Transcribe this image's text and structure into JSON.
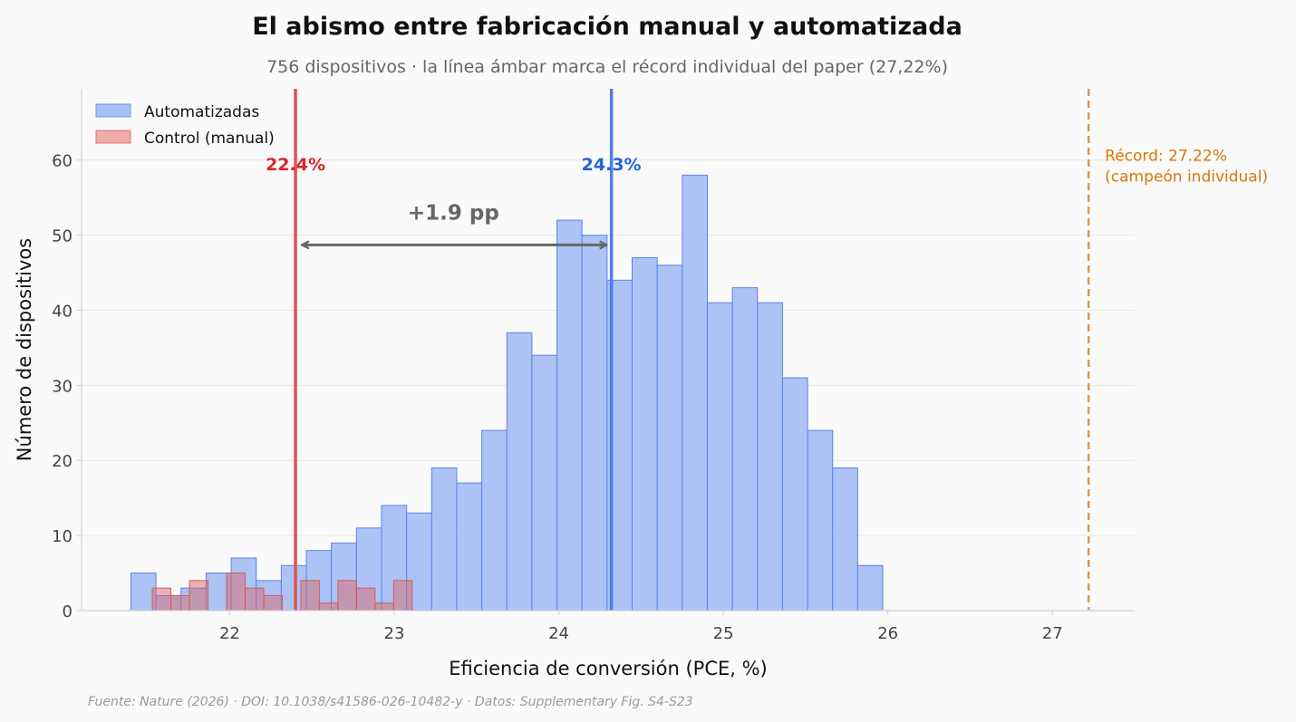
{
  "chart_data": {
    "type": "histogram",
    "title": "El abismo entre fabricación manual y automatizada",
    "subtitle": "756 dispositivos · la línea ámbar marca el récord individual del paper (27,22%)",
    "xlabel": "Eficiencia de conversión (PCE, %)",
    "ylabel": "Número de dispositivos",
    "xlim": [
      21.1,
      27.5
    ],
    "ylim": [
      0,
      69.5
    ],
    "x_ticks": [
      22,
      23,
      24,
      25,
      26,
      27
    ],
    "y_ticks": [
      0,
      10,
      20,
      30,
      40,
      50,
      60
    ],
    "grid": "horizontal",
    "legend_position": "top-left",
    "series": [
      {
        "name": "Automatizadas",
        "color": "#6f95ec",
        "bin_start": 21.4,
        "bin_width": 0.1523,
        "counts": [
          5,
          2,
          3,
          5,
          7,
          4,
          6,
          8,
          9,
          11,
          14,
          13,
          19,
          17,
          24,
          37,
          34,
          52,
          50,
          44,
          47,
          46,
          58,
          41,
          43,
          41,
          31,
          24,
          19,
          6
        ]
      },
      {
        "name": "Control (manual)",
        "color": "#e07272",
        "bin_start": 21.53,
        "bin_width": 0.1128,
        "counts": [
          3,
          2,
          4,
          0,
          5,
          3,
          2,
          0,
          4,
          1,
          4,
          3,
          1,
          4
        ]
      }
    ],
    "mean_lines": [
      {
        "value": 22.4,
        "label": "22.4%",
        "color": "#e05252"
      },
      {
        "value": 24.32,
        "label": "24.3%",
        "color": "#4c7de8"
      }
    ],
    "difference_annotation": {
      "label": "+1.9 pp",
      "from": 22.4,
      "to": 24.32,
      "y": 48.7
    },
    "record_line": {
      "value": 27.22,
      "label_line1": "Récord: 27.22%",
      "label_line2": "(campeón individual)",
      "color": "#d99a4e"
    },
    "source": "Fuente: Nature (2026) · DOI: 10.1038/s41586-026-10482-y · Datos: Supplementary Fig. S4-S23"
  }
}
